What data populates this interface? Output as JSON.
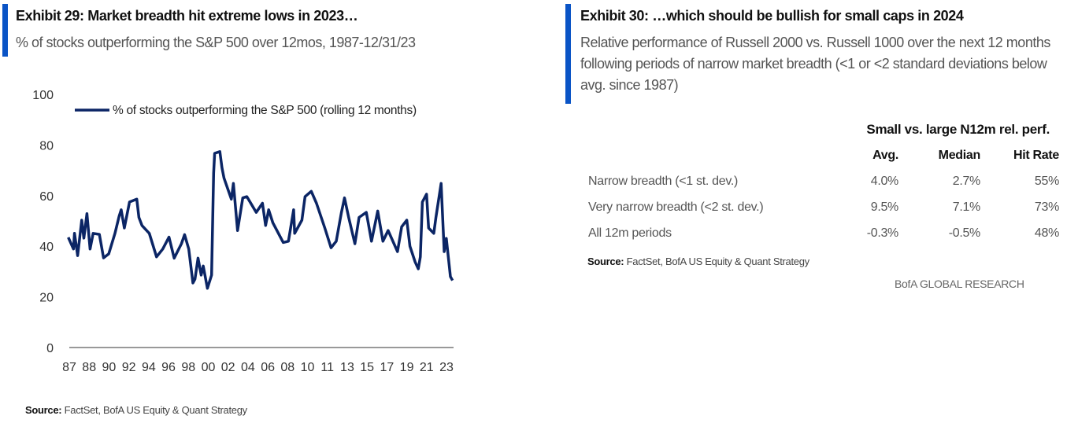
{
  "left": {
    "title": "Exhibit 29: Market breadth hit extreme lows in 2023…",
    "subtitle": "% of stocks outperforming the S&P 500 over 12mos, 1987-12/31/23",
    "source_label": "Source:",
    "source_text": " FactSet, BofA US Equity & Quant Strategy"
  },
  "right": {
    "title": "Exhibit 30: …which should be bullish for small caps in 2024",
    "subtitle": "Relative performance of Russell 2000 vs. Russell 1000 over the next 12 months following periods of narrow market breadth (<1 or <2 standard deviations below avg. since 1987)",
    "table": {
      "group_header": "Small vs. large N12m rel. perf.",
      "columns": [
        "Avg.",
        "Median",
        "Hit Rate"
      ],
      "rows": [
        {
          "label": "Narrow breadth (<1 st. dev.)",
          "values": [
            "4.0%",
            "2.7%",
            "55%"
          ]
        },
        {
          "label": "Very narrow breadth (<2 st. dev.)",
          "values": [
            "9.5%",
            "7.1%",
            "73%"
          ]
        },
        {
          "label": "All 12m periods",
          "values": [
            "-0.3%",
            "-0.5%",
            "48%"
          ]
        }
      ]
    },
    "source_label": "Source:",
    "source_text": " FactSet, BofA US Equity & Quant Strategy",
    "brand": "BofA GLOBAL RESEARCH"
  },
  "chart_data": {
    "type": "line",
    "title": "Exhibit 29: Market breadth hit extreme lows in 2023…",
    "xlabel": "",
    "ylabel": "",
    "ylim": [
      0,
      100
    ],
    "yticks": [
      "0",
      "20",
      "40",
      "60",
      "80",
      "100"
    ],
    "xticks": [
      "87",
      "88",
      "90",
      "92",
      "94",
      "96",
      "98",
      "00",
      "02",
      "04",
      "06",
      "08",
      "10",
      "11",
      "13",
      "15",
      "17",
      "19",
      "21",
      "23"
    ],
    "xlim": [
      1987,
      2024
    ],
    "legend": "top-left",
    "color": "#0b2565",
    "series": [
      {
        "name": "% of stocks outperforming the S&P 500 (rolling 12 months)",
        "x": [
          1986.9,
          1987.4,
          1987.5,
          1987.8,
          1988.2,
          1988.4,
          1988.7,
          1989.0,
          1989.3,
          1989.9,
          1990.3,
          1990.8,
          1991.4,
          1991.8,
          1992.0,
          1992.3,
          1992.8,
          1993.5,
          1993.7,
          1994.0,
          1994.7,
          1995.4,
          1996.0,
          1996.6,
          1997.1,
          1997.8,
          1998.1,
          1998.5,
          1998.9,
          1999.1,
          1999.4,
          1999.7,
          1999.9,
          2000.3,
          2000.7,
          2000.9,
          2001.0,
          2001.5,
          2001.7,
          2001.9,
          2002.6,
          2002.8,
          2003.2,
          2003.7,
          2004.1,
          2005.0,
          2005.6,
          2005.9,
          2006.2,
          2006.6,
          2007.6,
          2008.1,
          2008.6,
          2008.7,
          2009.4,
          2009.7,
          2010.3,
          2010.8,
          2011.6,
          2012.2,
          2012.7,
          2013.2,
          2013.5,
          2013.9,
          2014.5,
          2014.9,
          2015.6,
          2016.1,
          2016.7,
          2017.2,
          2017.7,
          2018.6,
          2019.0,
          2019.5,
          2019.8,
          2020.3,
          2020.6,
          2020.8,
          2021.0,
          2021.4,
          2021.6,
          2022.1,
          2022.3,
          2022.8,
          2023.1,
          2023.3,
          2023.7,
          2023.9
        ],
        "values": [
          43.5,
          38.9,
          45.1,
          36.3,
          50.3,
          43.2,
          52.9,
          38.9,
          45.1,
          44.7,
          35.4,
          37.0,
          45.1,
          51.9,
          54.4,
          47.2,
          57.5,
          58.6,
          51.4,
          48.2,
          45.1,
          35.8,
          38.9,
          43.6,
          35.3,
          41.0,
          44.6,
          38.9,
          25.5,
          27.0,
          35.3,
          28.6,
          32.2,
          23.4,
          28.6,
          68.9,
          76.7,
          77.4,
          71.0,
          66.9,
          58.6,
          64.8,
          46.2,
          59.1,
          59.6,
          53.4,
          57.0,
          48.2,
          54.4,
          49.3,
          41.5,
          42.0,
          54.4,
          45.1,
          50.3,
          59.6,
          61.7,
          57.0,
          47.2,
          39.4,
          42.0,
          53.4,
          59.1,
          51.4,
          41.0,
          51.4,
          53.4,
          42.0,
          53.9,
          42.0,
          46.2,
          37.9,
          47.7,
          50.3,
          40.0,
          33.8,
          31.1,
          35.8,
          57.5,
          60.6,
          47.2,
          45.1,
          51.4,
          64.8,
          37.9,
          43.1,
          28.0,
          26.5
        ]
      }
    ]
  }
}
